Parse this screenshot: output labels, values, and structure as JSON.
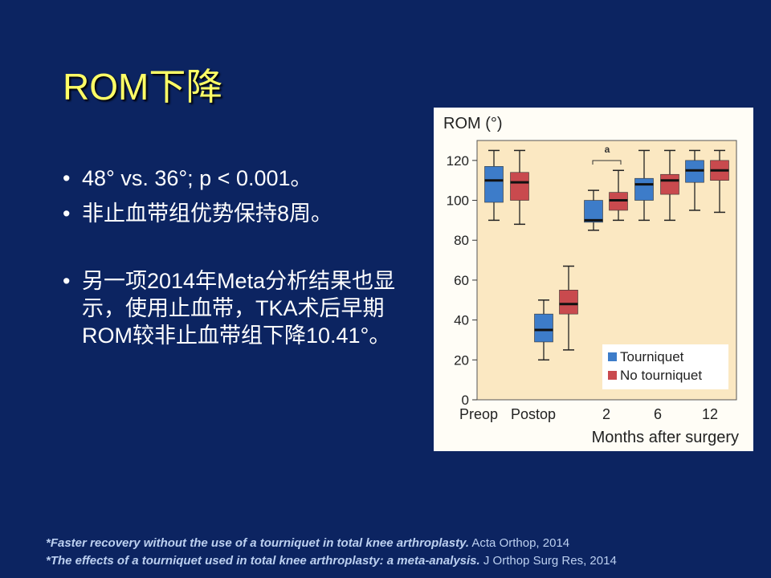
{
  "slide": {
    "title": "ROM下降",
    "bullets": [
      "48° vs. 36°; p < 0.001。",
      "非止血带组优势保持8周。",
      "另一项2014年Meta分析结果也显示，使用止血带，TKA术后早期ROM较非止血带组下降10.41°。"
    ],
    "references": [
      {
        "title": "*Faster recovery without the use of a tourniquet in total knee arthroplasty.",
        "source": " Acta Orthop, 2014"
      },
      {
        "title": "*The effects of a tourniquet used in total knee arthroplasty: a meta-analysis.",
        "source": " J Orthop Surg Res, 2014"
      }
    ]
  },
  "chart_data": {
    "type": "box",
    "ylabel": "ROM (°)",
    "xlabel": "Months after surgery",
    "ylim": [
      0,
      130
    ],
    "yticks": [
      "0",
      "20",
      "40",
      "60",
      "80",
      "100",
      "120"
    ],
    "categories": [
      "Preop",
      "Postop",
      "2",
      "6",
      "12"
    ],
    "annotation": "a",
    "colors": {
      "Tourniquet": "#3d7cc9",
      "No tourniquet": "#c94a4e",
      "plot_bg": "#fbe8c2"
    },
    "series": [
      {
        "name": "Tourniquet",
        "boxes": [
          {
            "min": 90,
            "q1": 99,
            "median": 110,
            "q3": 117,
            "max": 125
          },
          {
            "min": 20,
            "q1": 29,
            "median": 35,
            "q3": 43,
            "max": 50
          },
          {
            "min": 85,
            "q1": 89,
            "median": 90,
            "q3": 100,
            "max": 105
          },
          {
            "min": 90,
            "q1": 100,
            "median": 108,
            "q3": 111,
            "max": 125
          },
          {
            "min": 95,
            "q1": 109,
            "median": 115,
            "q3": 120,
            "max": 125
          }
        ]
      },
      {
        "name": "No tourniquet",
        "boxes": [
          {
            "min": 88,
            "q1": 100,
            "median": 109,
            "q3": 114,
            "max": 125
          },
          {
            "min": 25,
            "q1": 43,
            "median": 48,
            "q3": 55,
            "max": 67
          },
          {
            "min": 90,
            "q1": 95,
            "median": 100,
            "q3": 104,
            "max": 115
          },
          {
            "min": 90,
            "q1": 103,
            "median": 110,
            "q3": 113,
            "max": 125
          },
          {
            "min": 94,
            "q1": 110,
            "median": 115,
            "q3": 120,
            "max": 125
          }
        ]
      }
    ]
  }
}
